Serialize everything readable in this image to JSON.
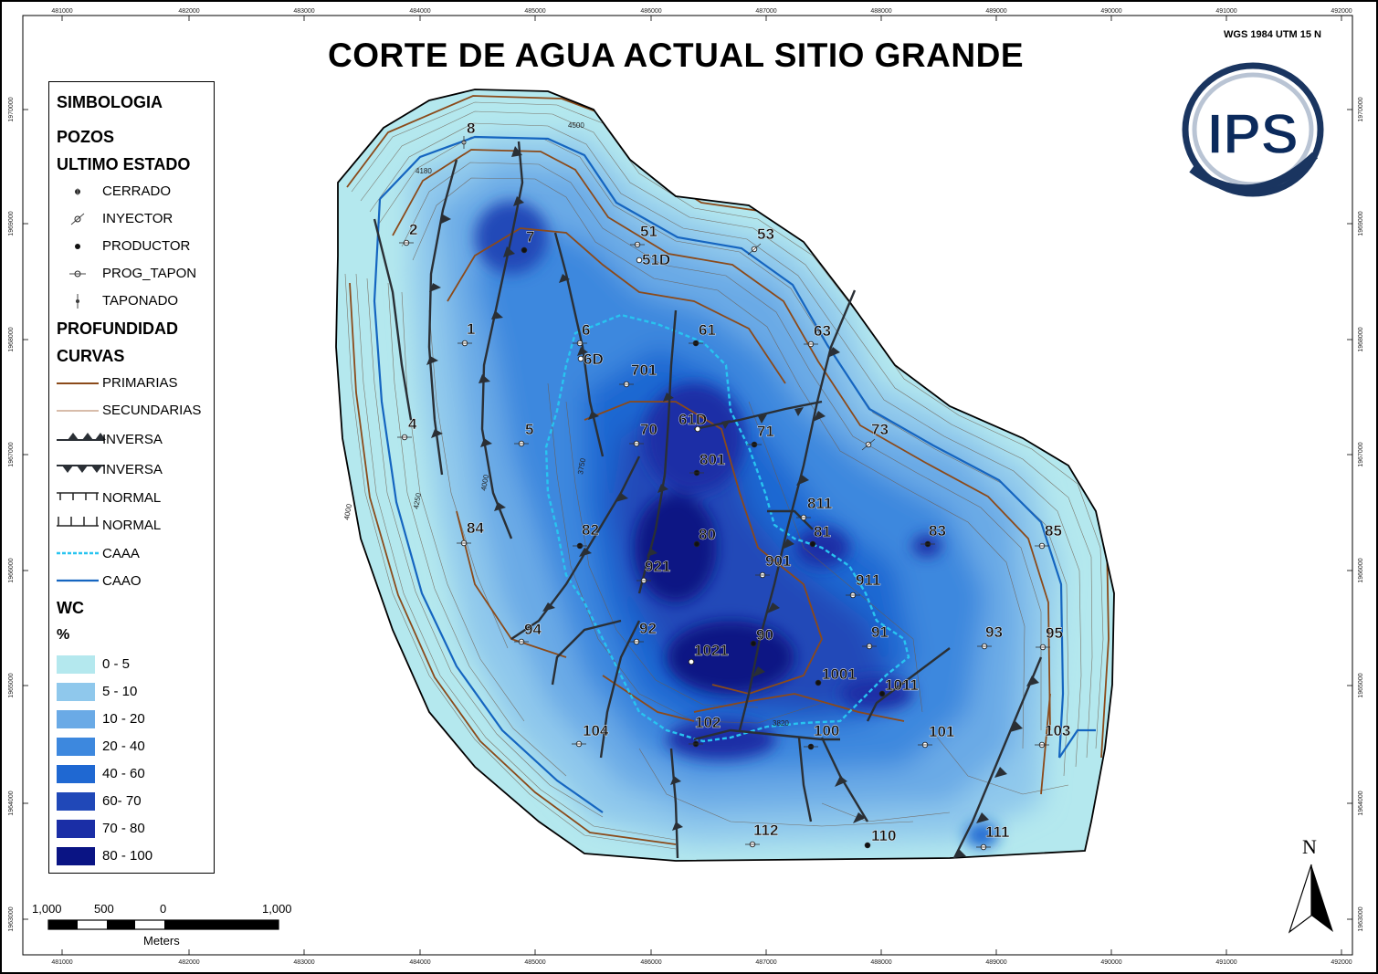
{
  "title": "CORTE DE AGUA ACTUAL SITIO GRANDE",
  "projection": "WGS 1984 UTM 15 N",
  "logo_text": "IPS",
  "north_label": "N",
  "axes": {
    "x_ticks": [
      "481000",
      "482000",
      "483000",
      "484000",
      "485000",
      "486000",
      "487000",
      "488000",
      "489000",
      "490000",
      "491000",
      "492000"
    ],
    "y_ticks": [
      "1970000",
      "1969000",
      "1968000",
      "1967000",
      "1966000",
      "1965000",
      "1964000",
      "1963000"
    ]
  },
  "legend": {
    "title": "SIMBOLOGIA",
    "wells_header": "POZOS",
    "status_header": "ULTIMO ESTADO",
    "status_items": [
      {
        "label": "CERRADO",
        "icon": "closed-well-icon"
      },
      {
        "label": "INYECTOR",
        "icon": "injector-well-icon"
      },
      {
        "label": "PRODUCTOR",
        "icon": "producer-well-icon"
      },
      {
        "label": "PROG_TAPON",
        "icon": "planned-plug-well-icon"
      },
      {
        "label": "TAPONADO",
        "icon": "plugged-well-icon"
      }
    ],
    "depth_header": "PROFUNDIDAD",
    "curves_header": "CURVAS",
    "curve_items": [
      {
        "label": "PRIMARIAS",
        "color": "#8b4a1a"
      },
      {
        "label": "SECUNDARIAS",
        "color": "#b07a55"
      },
      {
        "label": "INVERSA",
        "style": "reverse-fault-triangles-up"
      },
      {
        "label": "INVERSA",
        "style": "reverse-fault-triangles-down"
      },
      {
        "label": "NORMAL",
        "style": "normal-fault-ticks-down"
      },
      {
        "label": "NORMAL",
        "style": "normal-fault-ticks-up"
      },
      {
        "label": "CAAA",
        "color": "#28c4f0",
        "style": "dashed"
      },
      {
        "label": "CAAO",
        "color": "#1565c0",
        "style": "solid"
      }
    ],
    "wc_header": "WC",
    "wc_unit": "%",
    "wc_classes": [
      {
        "label": "0 - 5",
        "color": "#b4e8ee"
      },
      {
        "label": "5 - 10",
        "color": "#8fc8ec"
      },
      {
        "label": "10 - 20",
        "color": "#6aaae6"
      },
      {
        "label": "20 - 40",
        "color": "#3d88de"
      },
      {
        "label": "40 - 60",
        "color": "#1f68d2"
      },
      {
        "label": "60- 70",
        "color": "#2048b8"
      },
      {
        "label": "70 - 80",
        "color": "#1a2ea6"
      },
      {
        "label": "80 - 100",
        "color": "#0a1484"
      }
    ]
  },
  "scale": {
    "labels": [
      "1,000",
      "500",
      "0",
      "1,000"
    ],
    "unit": "Meters"
  },
  "contour_labels": [
    "4500",
    "4180",
    "4000",
    "4250",
    "4000",
    "3750",
    "3820"
  ],
  "wells": [
    {
      "name": "8"
    },
    {
      "name": "2"
    },
    {
      "name": "7"
    },
    {
      "name": "51"
    },
    {
      "name": "51D"
    },
    {
      "name": "53"
    },
    {
      "name": "1"
    },
    {
      "name": "6"
    },
    {
      "name": "6D"
    },
    {
      "name": "61"
    },
    {
      "name": "63"
    },
    {
      "name": "701"
    },
    {
      "name": "4"
    },
    {
      "name": "5"
    },
    {
      "name": "70"
    },
    {
      "name": "61D"
    },
    {
      "name": "71"
    },
    {
      "name": "73"
    },
    {
      "name": "801"
    },
    {
      "name": "811"
    },
    {
      "name": "84"
    },
    {
      "name": "82"
    },
    {
      "name": "80"
    },
    {
      "name": "81"
    },
    {
      "name": "83"
    },
    {
      "name": "85"
    },
    {
      "name": "921"
    },
    {
      "name": "901"
    },
    {
      "name": "911"
    },
    {
      "name": "94"
    },
    {
      "name": "92"
    },
    {
      "name": "90"
    },
    {
      "name": "91"
    },
    {
      "name": "93"
    },
    {
      "name": "95"
    },
    {
      "name": "1021"
    },
    {
      "name": "1001"
    },
    {
      "name": "1011"
    },
    {
      "name": "104"
    },
    {
      "name": "102"
    },
    {
      "name": "100"
    },
    {
      "name": "101"
    },
    {
      "name": "103"
    },
    {
      "name": "112"
    },
    {
      "name": "110"
    },
    {
      "name": "111"
    }
  ]
}
